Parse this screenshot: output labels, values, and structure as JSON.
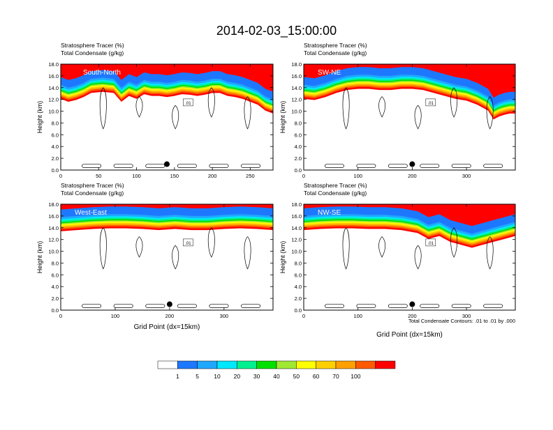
{
  "title": "2014-02-03_15:00:00",
  "panel_header_line1": "Stratosphere Tracer   (%)",
  "panel_header_line2": "Total Condensate   (g/kg)",
  "contour_note": "Total Condensate Contours: .01 to .01 by .000",
  "contour_label": ".01",
  "colorbar": {
    "colors": [
      "#ffffff",
      "#1e78ff",
      "#20a8ff",
      "#00e8ff",
      "#00f090",
      "#00e000",
      "#a0e832",
      "#ffff00",
      "#ffd000",
      "#ffa000",
      "#ff5a00",
      "#ff0000"
    ],
    "labels": [
      "1",
      "5",
      "10",
      "20",
      "30",
      "40",
      "50",
      "60",
      "70",
      "100"
    ]
  },
  "chart_data": [
    {
      "type": "heatmap",
      "panel": "South-North",
      "label": "South-North",
      "ylabel": "Height (km)",
      "xlabel": "",
      "xlim": [
        0,
        280
      ],
      "ylim": [
        0,
        18
      ],
      "xticks": [
        0,
        50,
        100,
        150,
        200,
        250
      ],
      "yticks": [
        "0.0",
        "2.0",
        "4.0",
        "6.0",
        "8.0",
        "10.0",
        "12.0",
        "14.0",
        "16.0",
        "18.0"
      ],
      "marker": {
        "x": 140,
        "y": 1.0
      },
      "tracer_boundary": {
        "x": [
          0,
          10,
          20,
          30,
          40,
          55,
          70,
          80,
          90,
          100,
          110,
          120,
          130,
          140,
          150,
          160,
          170,
          180,
          190,
          200,
          210,
          220,
          230,
          240,
          250,
          260,
          270,
          280
        ],
        "y": [
          14.5,
          14.0,
          14.3,
          14.8,
          15.5,
          15.7,
          15.5,
          14.0,
          15.0,
          14.5,
          15.3,
          15.0,
          15.0,
          14.8,
          15.0,
          15.3,
          15.2,
          15.0,
          15.2,
          15.5,
          15.5,
          15.0,
          14.8,
          14.5,
          14.0,
          13.5,
          12.5,
          12.0
        ]
      }
    },
    {
      "type": "heatmap",
      "panel": "SW-NE",
      "label": "SW-NE",
      "ylabel": "Height (km)",
      "xlabel": "",
      "xlim": [
        0,
        390
      ],
      "ylim": [
        0,
        18
      ],
      "xticks": [
        0,
        100,
        200,
        300
      ],
      "yticks": [
        "0.0",
        "2.0",
        "4.0",
        "6.0",
        "8.0",
        "10.0",
        "12.0",
        "14.0",
        "16.0",
        "18.0"
      ],
      "marker": {
        "x": 200,
        "y": 1.0
      },
      "tracer_boundary": {
        "x": [
          0,
          20,
          40,
          60,
          80,
          100,
          120,
          140,
          160,
          180,
          200,
          220,
          240,
          260,
          280,
          300,
          320,
          340,
          350,
          360,
          370,
          380,
          390
        ],
        "y": [
          14.5,
          14.3,
          14.8,
          15.5,
          16.0,
          16.2,
          16.2,
          16.0,
          16.0,
          16.2,
          16.2,
          16.0,
          15.5,
          15.0,
          14.5,
          14.2,
          13.5,
          12.5,
          11.0,
          11.5,
          11.8,
          12.0,
          12.0
        ]
      }
    },
    {
      "type": "heatmap",
      "panel": "West-East",
      "label": "West-East",
      "ylabel": "Height (km)",
      "xlabel": "Grid Point (dx=15km)",
      "xlim": [
        0,
        390
      ],
      "ylim": [
        0,
        18
      ],
      "xticks": [
        0,
        100,
        200,
        300
      ],
      "yticks": [
        "0.0",
        "2.0",
        "4.0",
        "6.0",
        "8.0",
        "10.0",
        "12.0",
        "14.0",
        "16.0",
        "18.0"
      ],
      "marker": {
        "x": 200,
        "y": 1.0
      },
      "tracer_boundary": {
        "x": [
          0,
          30,
          60,
          90,
          120,
          150,
          180,
          210,
          240,
          270,
          300,
          330,
          360,
          390
        ],
        "y": [
          15.8,
          16.0,
          16.2,
          16.3,
          16.3,
          16.2,
          16.0,
          16.2,
          16.0,
          16.0,
          16.2,
          16.3,
          16.2,
          16.0
        ]
      }
    },
    {
      "type": "heatmap",
      "panel": "NW-SE",
      "label": "NW-SE",
      "ylabel": "Height (km)",
      "xlabel": "Grid Point (dx=15km)",
      "xlim": [
        0,
        390
      ],
      "ylim": [
        0,
        18
      ],
      "xticks": [
        0,
        100,
        200,
        300
      ],
      "yticks": [
        "0.0",
        "2.0",
        "4.0",
        "6.0",
        "8.0",
        "10.0",
        "12.0",
        "14.0",
        "16.0",
        "18.0"
      ],
      "marker": {
        "x": 200,
        "y": 1.0
      },
      "tracer_boundary": {
        "x": [
          0,
          30,
          60,
          90,
          120,
          150,
          180,
          210,
          230,
          250,
          270,
          290,
          310,
          330,
          350,
          370,
          390
        ],
        "y": [
          16.0,
          16.2,
          16.3,
          16.3,
          16.2,
          16.2,
          16.0,
          15.5,
          14.5,
          15.0,
          14.0,
          13.5,
          13.0,
          13.5,
          14.0,
          14.5,
          15.0
        ]
      }
    }
  ]
}
